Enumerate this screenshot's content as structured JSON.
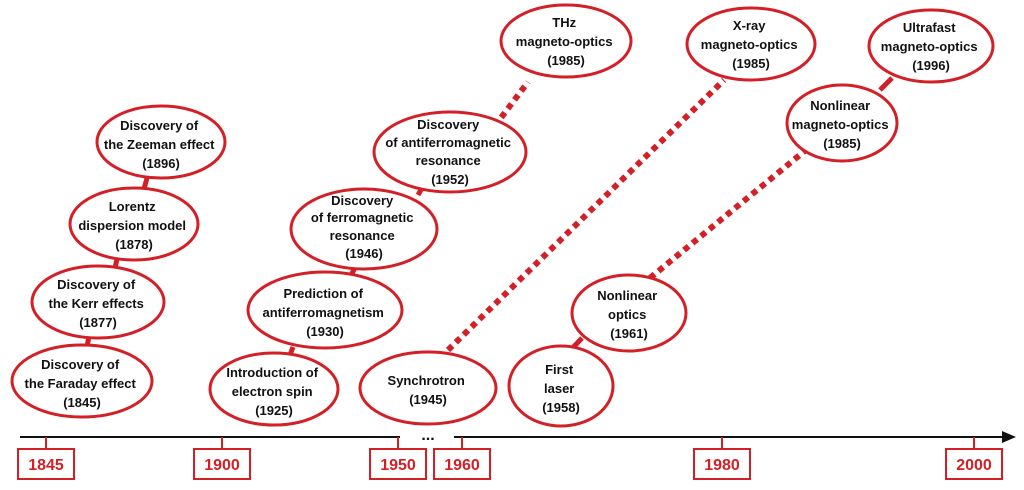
{
  "colors": {
    "accent": "#d32027",
    "ink": "#111111"
  },
  "nodes": [
    {
      "id": "faraday",
      "lines": [
        "Discovery of",
        "the Faraday effect",
        "(1845)"
      ]
    },
    {
      "id": "kerr",
      "lines": [
        "Discovery of",
        "the Kerr effects",
        "(1877)"
      ]
    },
    {
      "id": "lorentz",
      "lines": [
        "Lorentz",
        "dispersion model",
        "(1878)"
      ]
    },
    {
      "id": "zeeman",
      "lines": [
        "Discovery of",
        "the Zeeman effect",
        "(1896)"
      ]
    },
    {
      "id": "spin",
      "lines": [
        "Introduction of",
        "electron spin",
        "(1925)"
      ]
    },
    {
      "id": "afm-pred",
      "lines": [
        "Prediction of",
        "antiferromagnetism",
        "(1930)"
      ]
    },
    {
      "id": "fmr",
      "lines": [
        "Discovery",
        "of ferromagnetic",
        "resonance",
        "(1946)"
      ]
    },
    {
      "id": "afmr",
      "lines": [
        "Discovery",
        "of antiferromagnetic",
        "resonance",
        "(1952)"
      ]
    },
    {
      "id": "thz",
      "lines": [
        "THz",
        "magneto-optics",
        "(1985)"
      ]
    },
    {
      "id": "synchrotron",
      "lines": [
        "Synchrotron",
        "(1945)"
      ]
    },
    {
      "id": "xray",
      "lines": [
        "X-ray",
        "magneto-optics",
        "(1985)"
      ]
    },
    {
      "id": "laser",
      "lines": [
        "First",
        "laser",
        "(1958)"
      ]
    },
    {
      "id": "nlo",
      "lines": [
        "Nonlinear",
        "optics",
        "(1961)"
      ]
    },
    {
      "id": "nlmo",
      "lines": [
        "Nonlinear",
        "magneto-optics",
        "(1985)"
      ]
    },
    {
      "id": "ultrafast",
      "lines": [
        "Ultrafast",
        "magneto-optics",
        "(1996)"
      ]
    }
  ],
  "timeline": {
    "years": [
      "1845",
      "1900",
      "1950",
      "1960",
      "1980",
      "2000"
    ],
    "break_marker": "..."
  }
}
